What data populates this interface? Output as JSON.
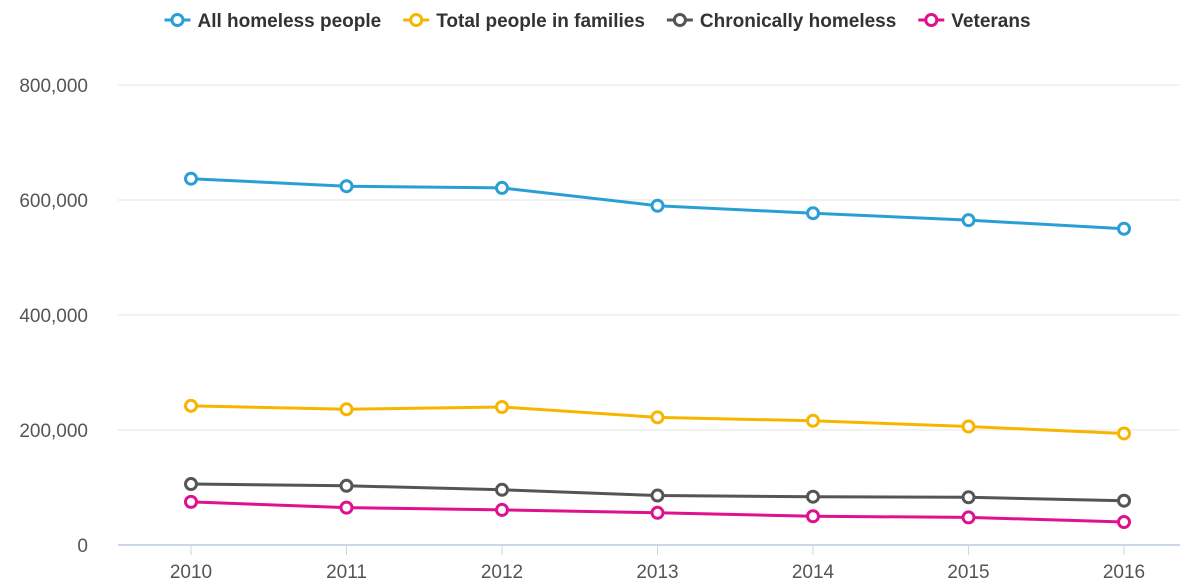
{
  "chart_data": {
    "type": "line",
    "x": [
      "2010",
      "2011",
      "2012",
      "2013",
      "2014",
      "2015",
      "2016"
    ],
    "y_ticks": [
      "0",
      "200,000",
      "400,000",
      "600,000",
      "800,000"
    ],
    "y_tick_values": [
      0,
      200000,
      400000,
      600000,
      800000
    ],
    "ylim": [
      0,
      800000
    ],
    "grid": true,
    "legend_position": "top",
    "series": [
      {
        "name": "All homeless people",
        "color": "#2a9fd6",
        "values": [
          637000,
          624000,
          621000,
          590000,
          577000,
          565000,
          550000
        ]
      },
      {
        "name": "Total people in families",
        "color": "#f7b500",
        "values": [
          242000,
          236000,
          240000,
          222000,
          216000,
          206000,
          194000
        ]
      },
      {
        "name": "Chronically homeless",
        "color": "#555555",
        "values": [
          106000,
          103000,
          96000,
          86000,
          84000,
          83000,
          77000
        ]
      },
      {
        "name": "Veterans",
        "color": "#e0118f",
        "values": [
          75000,
          65000,
          61000,
          56000,
          50000,
          48000,
          40000
        ]
      }
    ]
  }
}
